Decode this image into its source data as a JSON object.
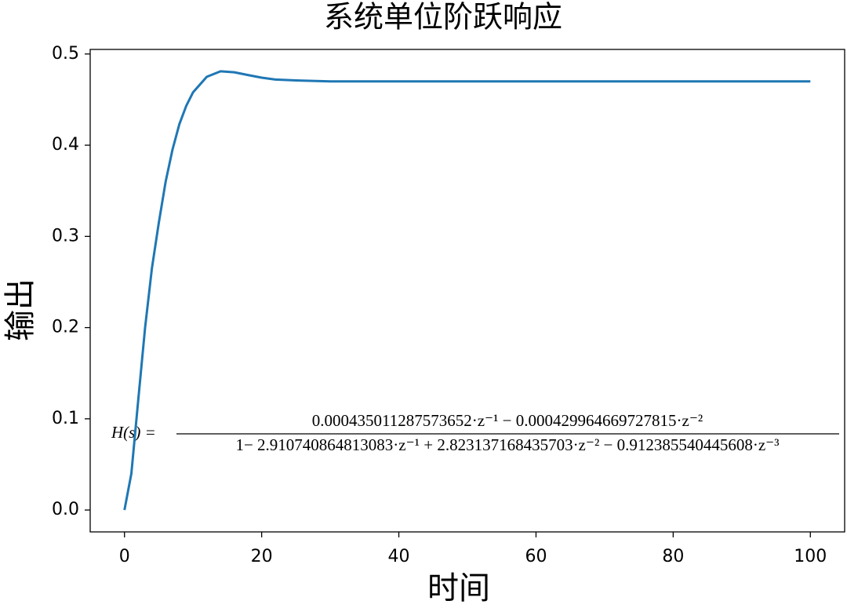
{
  "chart_data": {
    "type": "line",
    "title": "系统单位阶跃响应",
    "x_label": "时间",
    "y_label": "输出",
    "x": [
      0,
      1,
      2,
      3,
      4,
      5,
      6,
      7,
      8,
      9,
      10,
      12,
      14,
      16,
      18,
      20,
      22,
      25,
      30,
      40,
      50,
      60,
      70,
      80,
      90,
      100
    ],
    "series": [
      {
        "color": "#1f77b4",
        "values": [
          0,
          0.04,
          0.12,
          0.2,
          0.265,
          0.315,
          0.36,
          0.395,
          0.423,
          0.443,
          0.458,
          0.475,
          0.481,
          0.48,
          0.477,
          0.474,
          0.472,
          0.471,
          0.47,
          0.47,
          0.47,
          0.47,
          0.47,
          0.47,
          0.47,
          0.47
        ]
      }
    ],
    "xlim": [
      -5,
      105
    ],
    "ylim": [
      -0.024,
      0.505
    ],
    "xticks": [
      0,
      20,
      40,
      60,
      80,
      100
    ],
    "yticks": [
      {
        "value": 0,
        "label": "0.0"
      },
      0.1,
      0.2,
      0.3,
      0.4,
      0.5
    ],
    "grid": false,
    "annotation": {
      "lhs": "H(s) =",
      "numerator": "0.000435011287573652·z⁻¹ − 0.000429964669727815·z⁻²",
      "denominator": "1− 2.910740864813083·z⁻¹ + 2.823137168435703·z⁻² − 0.912385540445608·z⁻³"
    }
  }
}
